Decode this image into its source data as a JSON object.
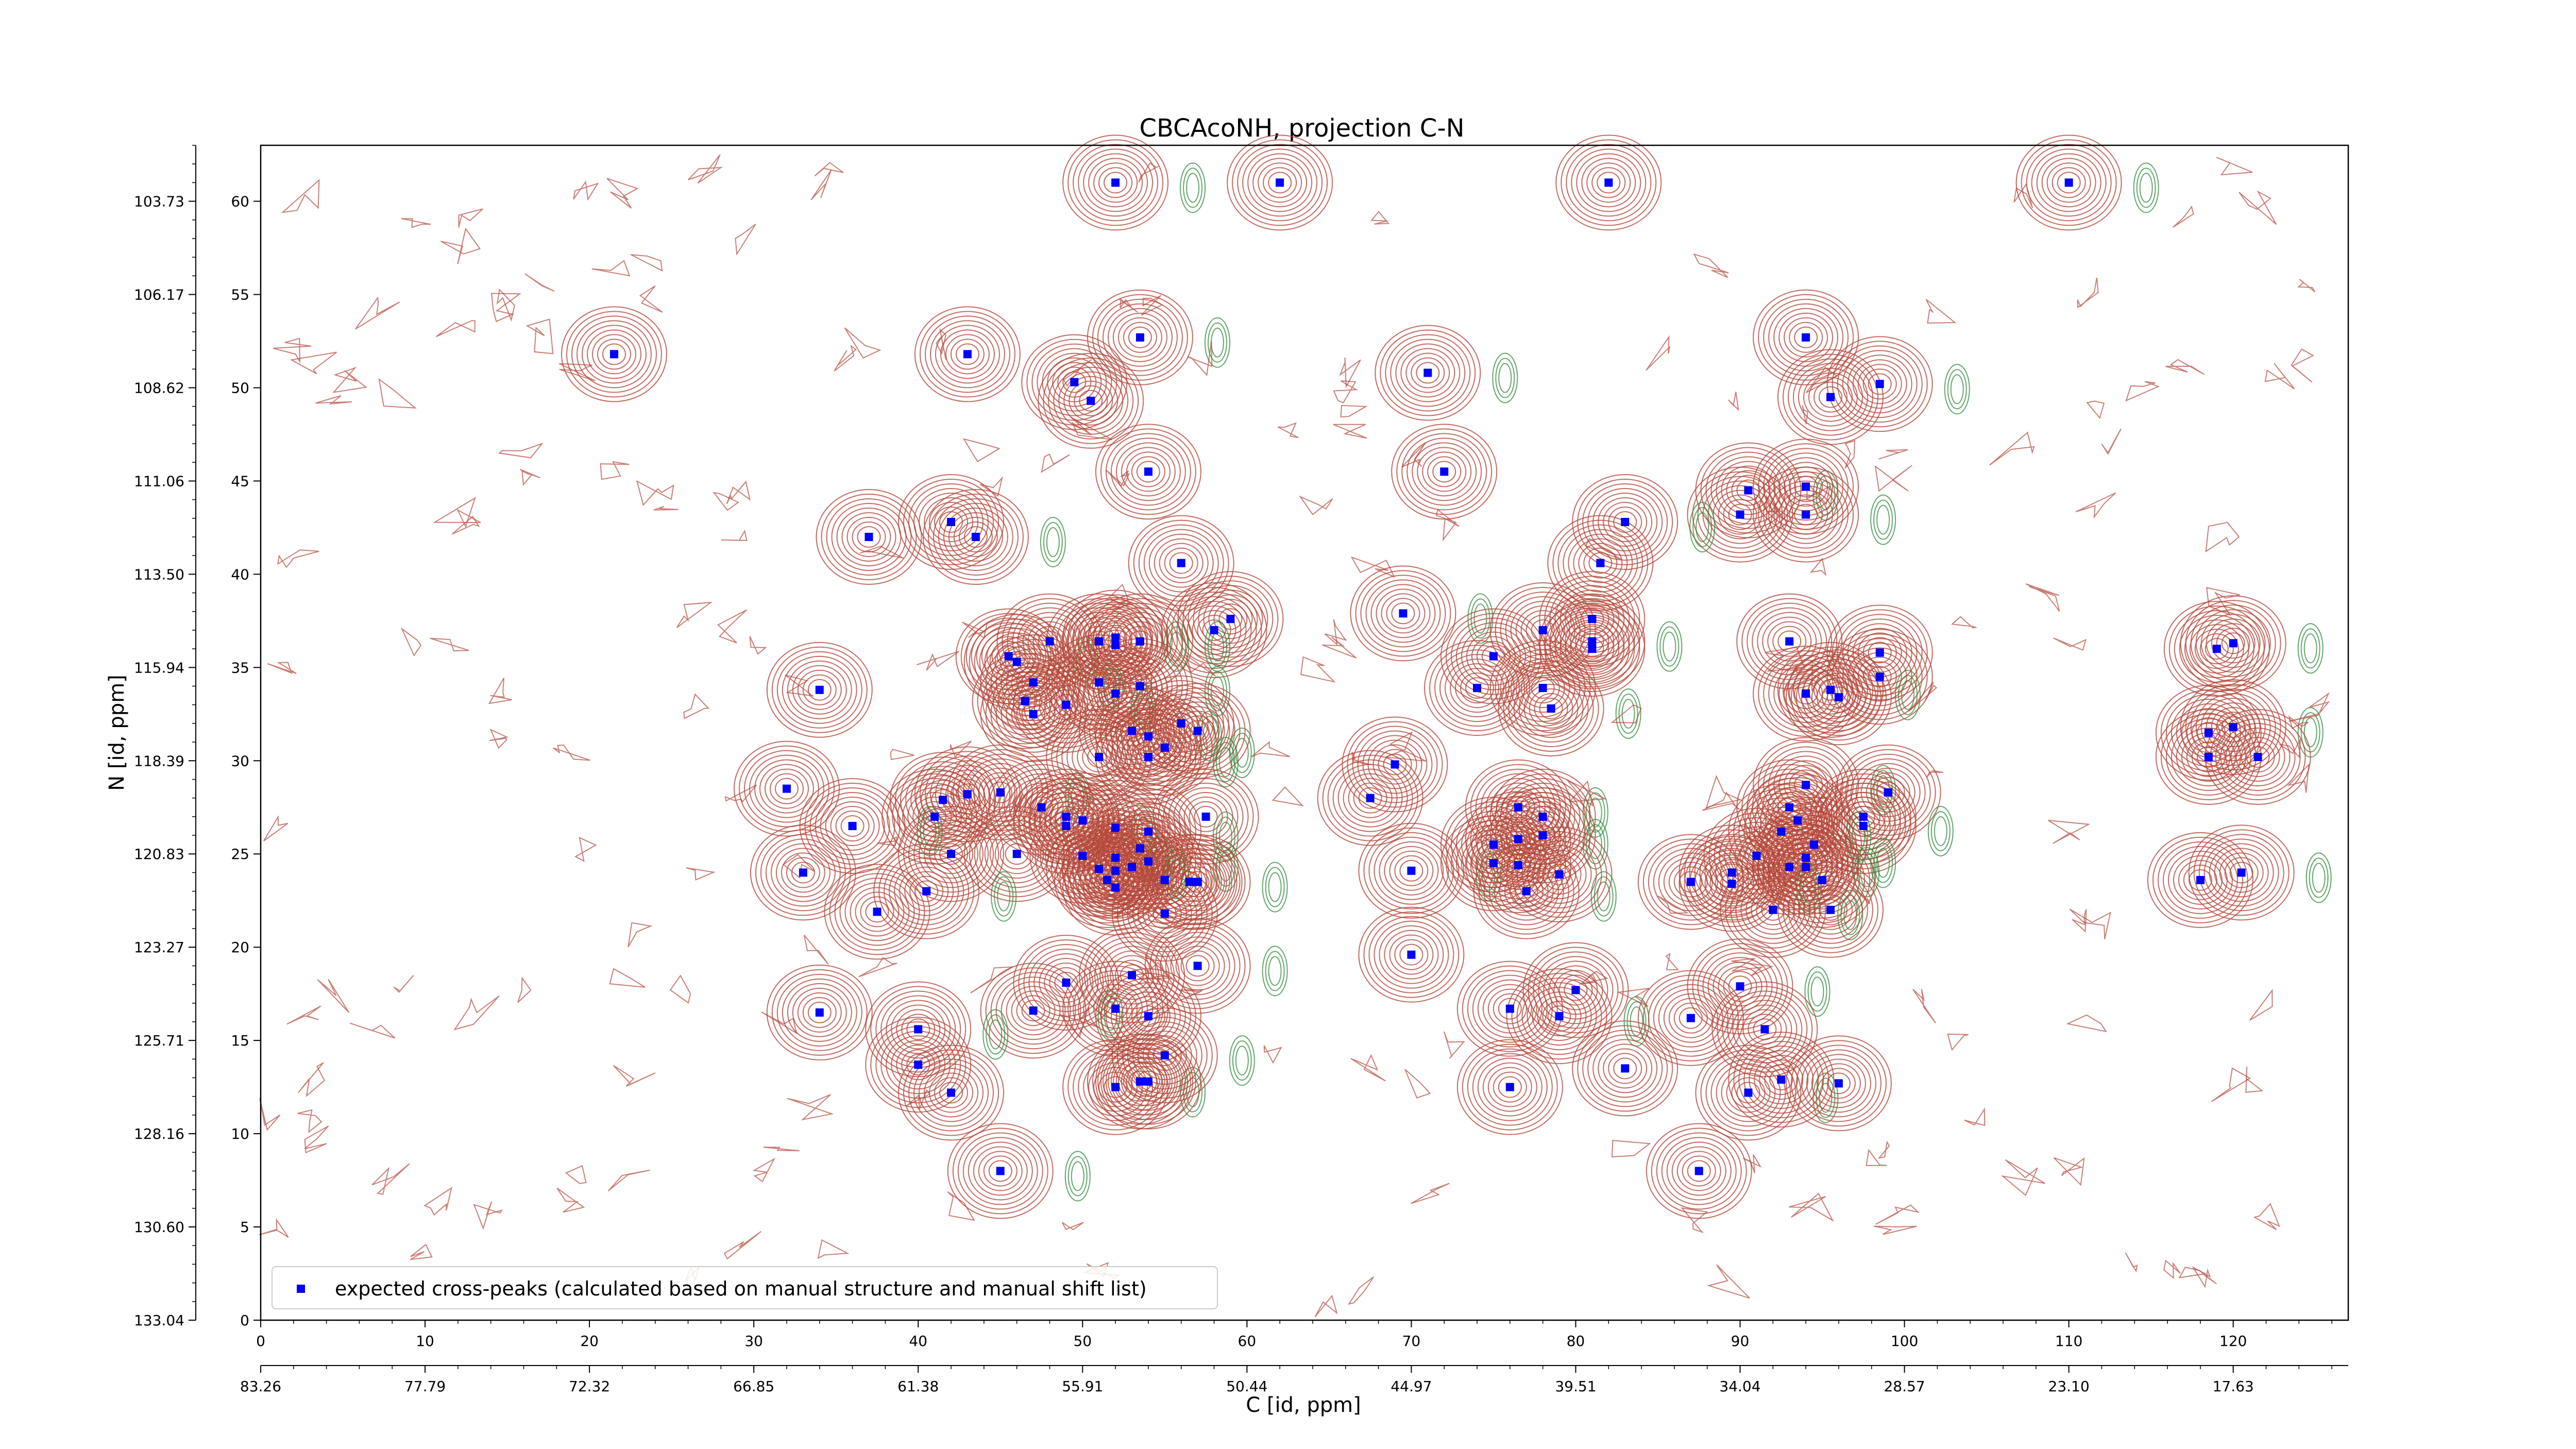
{
  "chart_data": {
    "type": "scatter",
    "title": "CBCAcoNH, projection C-N",
    "xlabel": "C [id, ppm]",
    "ylabel": "N [id, ppm]",
    "xlim": [
      0,
      127
    ],
    "ylim": [
      0,
      63
    ],
    "x_ticks": [
      "0",
      "10",
      "20",
      "30",
      "40",
      "50",
      "60",
      "70",
      "80",
      "90",
      "100",
      "110",
      "120"
    ],
    "x_ppm_ticks": [
      "83.26",
      "77.79",
      "72.32",
      "66.85",
      "61.38",
      "55.91",
      "50.44",
      "44.97",
      "39.51",
      "34.04",
      "28.57",
      "23.10",
      "17.63"
    ],
    "y_ticks": [
      "0",
      "5",
      "10",
      "15",
      "20",
      "25",
      "30",
      "35",
      "40",
      "45",
      "50",
      "55",
      "60"
    ],
    "y_ppm_ticks": [
      "133.04",
      "130.60",
      "128.16",
      "125.71",
      "123.27",
      "120.83",
      "118.39",
      "115.94",
      "113.50",
      "111.06",
      "108.62",
      "106.17",
      "103.73"
    ],
    "legend": {
      "placement": "lower left",
      "entries": [
        "expected cross-peaks (calculated based on manual structure and manual shift list)"
      ]
    },
    "colors": {
      "positive_contour": "#b5473a",
      "negative_contour": "#2e8b3a",
      "peak_marker": "#0000ff"
    },
    "series": [
      {
        "name": "expected cross-peaks (calculated based on manual structure and manual shift list)",
        "points": [
          [
            52,
            61
          ],
          [
            62,
            61
          ],
          [
            82,
            61
          ],
          [
            110,
            61
          ],
          [
            21.5,
            51.8
          ],
          [
            43,
            51.8
          ],
          [
            53.5,
            52.7
          ],
          [
            50.5,
            49.3
          ],
          [
            49.5,
            50.3
          ],
          [
            71,
            50.8
          ],
          [
            94,
            52.7
          ],
          [
            95.5,
            49.5
          ],
          [
            98.5,
            50.2
          ],
          [
            54,
            45.5
          ],
          [
            72,
            45.5
          ],
          [
            90.5,
            44.5
          ],
          [
            90,
            43.2
          ],
          [
            94,
            44.7
          ],
          [
            94,
            43.2
          ],
          [
            37,
            42
          ],
          [
            42,
            42.8
          ],
          [
            43.5,
            42
          ],
          [
            56,
            40.6
          ],
          [
            81.5,
            40.6
          ],
          [
            83,
            42.8
          ],
          [
            58,
            37
          ],
          [
            59,
            37.6
          ],
          [
            69.5,
            37.9
          ],
          [
            78,
            37
          ],
          [
            81,
            37.6
          ],
          [
            81,
            36.4
          ],
          [
            81,
            36
          ],
          [
            75,
            35.6
          ],
          [
            45.5,
            35.6
          ],
          [
            46,
            35.3
          ],
          [
            48,
            36.4
          ],
          [
            51,
            36.4
          ],
          [
            52,
            36.6
          ],
          [
            52,
            36.2
          ],
          [
            53.5,
            36.4
          ],
          [
            93,
            36.4
          ],
          [
            98.5,
            35.8
          ],
          [
            47,
            34.2
          ],
          [
            51,
            34.2
          ],
          [
            52,
            33.6
          ],
          [
            53.5,
            34
          ],
          [
            46.5,
            33.2
          ],
          [
            47,
            32.5
          ],
          [
            49,
            33
          ],
          [
            74,
            33.9
          ],
          [
            78,
            33.9
          ],
          [
            78.5,
            32.8
          ],
          [
            34,
            33.8
          ],
          [
            94,
            33.6
          ],
          [
            95.5,
            33.8
          ],
          [
            96,
            33.4
          ],
          [
            98.5,
            34.5
          ],
          [
            53,
            31.6
          ],
          [
            54,
            31.3
          ],
          [
            56,
            32
          ],
          [
            55,
            30.7
          ],
          [
            57,
            31.6
          ],
          [
            51,
            30.2
          ],
          [
            54,
            30.2
          ],
          [
            118.5,
            31.5
          ],
          [
            118.5,
            30.2
          ],
          [
            120,
            31.8
          ],
          [
            121.5,
            30.2
          ],
          [
            119,
            36
          ],
          [
            120,
            36.3
          ],
          [
            69,
            29.8
          ],
          [
            32,
            28.5
          ],
          [
            94,
            28.7
          ],
          [
            99,
            28.3
          ],
          [
            97.5,
            27
          ],
          [
            97.5,
            26.5
          ],
          [
            93,
            27.5
          ],
          [
            93.5,
            26.8
          ],
          [
            92.5,
            26.2
          ],
          [
            41.5,
            27.9
          ],
          [
            43,
            28.2
          ],
          [
            45,
            28.3
          ],
          [
            47.5,
            27.5
          ],
          [
            49,
            27
          ],
          [
            49,
            26.5
          ],
          [
            50,
            26.8
          ],
          [
            52,
            26.4
          ],
          [
            54,
            26.2
          ],
          [
            41,
            27
          ],
          [
            57.5,
            27
          ],
          [
            76.5,
            27.5
          ],
          [
            78,
            27
          ],
          [
            67.5,
            28
          ],
          [
            36,
            26.5
          ],
          [
            42,
            25
          ],
          [
            46,
            25
          ],
          [
            50,
            24.9
          ],
          [
            52,
            24.8
          ],
          [
            53.5,
            25.3
          ],
          [
            54,
            24.6
          ],
          [
            52,
            24.1
          ],
          [
            53,
            24.3
          ],
          [
            51,
            24.2
          ],
          [
            51.5,
            23.6
          ],
          [
            52,
            23.2
          ],
          [
            70,
            24.1
          ],
          [
            75,
            25.5
          ],
          [
            75,
            24.5
          ],
          [
            76.5,
            25.8
          ],
          [
            78,
            26
          ],
          [
            76.5,
            24.4
          ],
          [
            77,
            23
          ],
          [
            79,
            23.9
          ],
          [
            91,
            24.9
          ],
          [
            94,
            24.8
          ],
          [
            94.5,
            25.5
          ],
          [
            94,
            24.3
          ],
          [
            93,
            24.3
          ],
          [
            87,
            23.5
          ],
          [
            89.5,
            24
          ],
          [
            89.5,
            23.4
          ],
          [
            95,
            23.6
          ],
          [
            33,
            24
          ],
          [
            40.5,
            23
          ],
          [
            55,
            23.6
          ],
          [
            56.5,
            23.5
          ],
          [
            57,
            23.5
          ],
          [
            55,
            21.8
          ],
          [
            37.5,
            21.9
          ],
          [
            92,
            22
          ],
          [
            95.5,
            22
          ],
          [
            118,
            23.6
          ],
          [
            120.5,
            24
          ],
          [
            70,
            19.6
          ],
          [
            53,
            18.5
          ],
          [
            57,
            19
          ],
          [
            49,
            18.1
          ],
          [
            76,
            16.7
          ],
          [
            79,
            16.3
          ],
          [
            80,
            17.7
          ],
          [
            87,
            16.2
          ],
          [
            90,
            17.9
          ],
          [
            91.5,
            15.6
          ],
          [
            34,
            16.5
          ],
          [
            47,
            16.6
          ],
          [
            52,
            16.7
          ],
          [
            54,
            16.3
          ],
          [
            40,
            15.6
          ],
          [
            40,
            13.7
          ],
          [
            42,
            12.2
          ],
          [
            52,
            12.5
          ],
          [
            53.5,
            12.8
          ],
          [
            54,
            12.8
          ],
          [
            55,
            14.2
          ],
          [
            76,
            12.5
          ],
          [
            83,
            13.5
          ],
          [
            90.5,
            12.2
          ],
          [
            92.5,
            12.9
          ],
          [
            96,
            12.7
          ],
          [
            45,
            8
          ],
          [
            87.5,
            8
          ]
        ]
      }
    ]
  }
}
